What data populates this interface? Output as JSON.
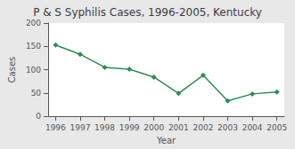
{
  "chart_data": {
    "type": "line",
    "title": "P & S Syphilis Cases, 1996-2005, Kentucky",
    "xlabel": "Year",
    "ylabel": "Cases",
    "x": [
      1996,
      1997,
      1998,
      1999,
      2000,
      2001,
      2002,
      2003,
      2004,
      2005
    ],
    "values": [
      153,
      133,
      105,
      101,
      84,
      49,
      88,
      33,
      48,
      52
    ],
    "color": "#2e8b57",
    "marker": "diamond",
    "xlim": [
      1995.7,
      2005.3
    ],
    "xticks": [
      1996,
      1997,
      1998,
      1999,
      2000,
      2001,
      2002,
      2003,
      2004,
      2005
    ],
    "ylim": [
      0,
      200
    ],
    "yticks": [
      0,
      50,
      100,
      150,
      200
    ],
    "grid": false
  }
}
